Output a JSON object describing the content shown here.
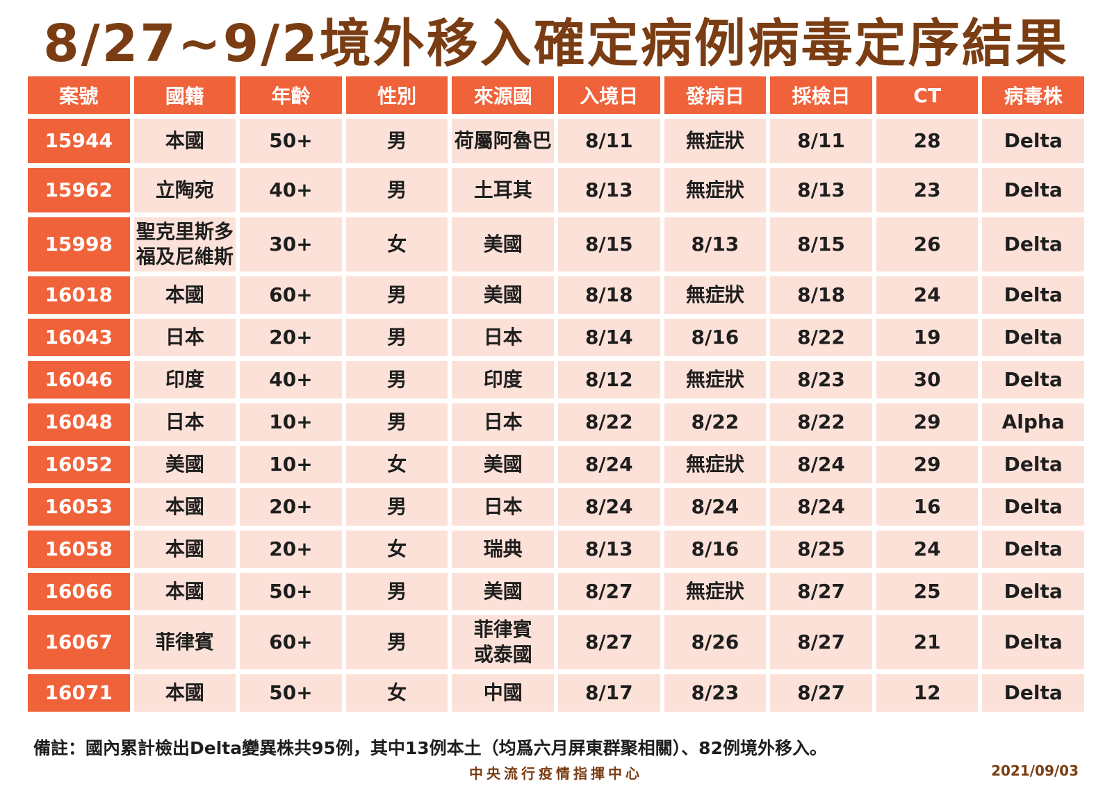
{
  "title": "8/27~9/2境外移入確定病例病毒定序結果",
  "headers": [
    "案號",
    "國籍",
    "年齡",
    "性別",
    "來源國",
    "入境日",
    "發病日",
    "採檢日",
    "CT",
    "病毒株"
  ],
  "rows": [
    [
      "15944",
      "本國",
      "50+",
      "男",
      "荷屬阿魯巴",
      "8/11",
      "無症狀",
      "8/11",
      "28",
      "Delta"
    ],
    [
      "15962",
      "立陶宛",
      "40+",
      "男",
      "土耳其",
      "8/13",
      "無症狀",
      "8/13",
      "23",
      "Delta"
    ],
    [
      "15998",
      "聖克里斯多\n福及尼維斯",
      "30+",
      "女",
      "美國",
      "8/15",
      "8/13",
      "8/15",
      "26",
      "Delta"
    ],
    [
      "16018",
      "本國",
      "60+",
      "男",
      "美國",
      "8/18",
      "無症狀",
      "8/18",
      "24",
      "Delta"
    ],
    [
      "16043",
      "日本",
      "20+",
      "男",
      "日本",
      "8/14",
      "8/16",
      "8/22",
      "19",
      "Delta"
    ],
    [
      "16046",
      "印度",
      "40+",
      "男",
      "印度",
      "8/12",
      "無症狀",
      "8/23",
      "30",
      "Delta"
    ],
    [
      "16048",
      "日本",
      "10+",
      "男",
      "日本",
      "8/22",
      "8/22",
      "8/22",
      "29",
      "Alpha"
    ],
    [
      "16052",
      "美國",
      "10+",
      "女",
      "美國",
      "8/24",
      "無症狀",
      "8/24",
      "29",
      "Delta"
    ],
    [
      "16053",
      "本國",
      "20+",
      "男",
      "日本",
      "8/24",
      "8/24",
      "8/24",
      "16",
      "Delta"
    ],
    [
      "16058",
      "本國",
      "20+",
      "女",
      "瑞典",
      "8/13",
      "8/16",
      "8/25",
      "24",
      "Delta"
    ],
    [
      "16066",
      "本國",
      "50+",
      "男",
      "美國",
      "8/27",
      "無症狀",
      "8/27",
      "25",
      "Delta"
    ],
    [
      "16067",
      "菲律賓",
      "60+",
      "男",
      "菲律賓\n或泰國",
      "8/27",
      "8/26",
      "8/27",
      "21",
      "Delta"
    ],
    [
      "16071",
      "本國",
      "50+",
      "女",
      "中國",
      "8/17",
      "8/23",
      "8/27",
      "12",
      "Delta"
    ]
  ],
  "footnote": "備註：國內累計檢出Delta變異株共95例，其中13例本土（均爲六月屏東群聚相關）、82例境外移入。",
  "organization": "中央流行疫情指揮中心",
  "date": "2021/09/03",
  "colors": {
    "title": "#7a3d13",
    "header_bg": "#f0623a",
    "cell_bg": "#fce1d8"
  }
}
